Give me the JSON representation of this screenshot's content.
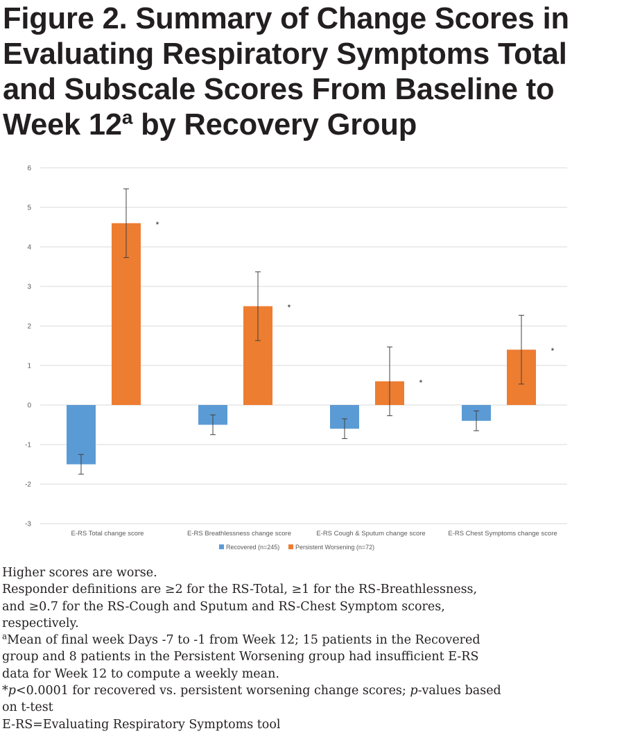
{
  "figure": {
    "title_main": "Figure 2. Summary of Change Scores in Evaluating Respiratory Symptoms Total and Subscale Scores From Baseline to Week 12",
    "title_sup": "a",
    "title_tail": " by Recovery Group"
  },
  "chart_data": {
    "type": "bar",
    "categories": [
      "E-RS Total change score",
      "E-RS Breathlessness change score",
      "E-RS Cough & Sputum change score",
      "E-RS Chest Symptoms change score"
    ],
    "series": [
      {
        "name": "Recovered (n=245)",
        "color": "#5b9bd5",
        "values": [
          -1.5,
          -0.5,
          -0.6,
          -0.4
        ],
        "error_low": [
          -1.75,
          -0.75,
          -0.85,
          -0.65
        ],
        "error_high": [
          -1.25,
          -0.25,
          -0.35,
          -0.15
        ]
      },
      {
        "name": "Persistent Worsening (n=72)",
        "color": "#ed7d31",
        "values": [
          4.6,
          2.5,
          0.6,
          1.4
        ],
        "error_low": [
          3.73,
          1.63,
          -0.27,
          0.53
        ],
        "error_high": [
          5.47,
          3.37,
          1.47,
          2.27
        ]
      }
    ],
    "significance_marker": "*",
    "yticks": [
      "6",
      "5",
      "4",
      "3",
      "2",
      "1",
      "0",
      "-1",
      "-2",
      "-3"
    ],
    "ylim": [
      -3,
      6
    ],
    "title": "",
    "xlabel": "",
    "ylabel": "",
    "grid": true,
    "legend_position": "bottom"
  },
  "notes": {
    "line1": "Higher scores are worse.",
    "line2": "Responder definitions are ≥2 for the RS-Total, ≥1 for the RS-Breathlessness,",
    "line3": "and ≥0.7 for the RS-Cough and Sputum and RS-Chest Symptom scores,",
    "line4": "respectively.",
    "footnote_a_marker": "a",
    "line5": "Mean of final week Days -7 to -1 from Week 12; 15 patients in the Recovered",
    "line6": "group and 8 patients in the Persistent Worsening group had insufficient E-RS",
    "line7": "data for Week 12 to compute a weekly mean.",
    "star": "*",
    "p_letter": "p",
    "line8_mid": "<0.0001 for recovered vs. persistent worsening change scores; ",
    "p_letter2": "p",
    "line8_end": "-values based",
    "line9": "on t-test",
    "line10": "E-RS=Evaluating Respiratory Symptoms tool"
  }
}
